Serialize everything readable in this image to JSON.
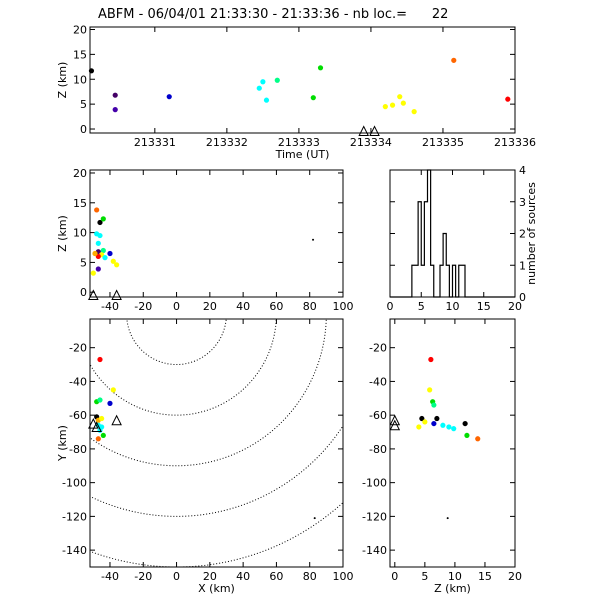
{
  "title": "ABFM - 06/04/01 21:33:30 - 21:33:36 - nb loc.=      22",
  "chart_data": [
    {
      "id": "time-height",
      "type": "scatter",
      "xlabel": "Time (UT)",
      "ylabel": "Z (km)",
      "xlim": [
        213330.1,
        213336.0
      ],
      "ylim": [
        -0.8,
        20.5
      ],
      "xticks": [
        "213331",
        "213332",
        "213333",
        "213334",
        "213335",
        "213336"
      ],
      "yticks": [
        "0",
        "5",
        "10",
        "15",
        "20"
      ],
      "points": [
        {
          "x": 213330.12,
          "y": 11.7,
          "color": "#000000"
        },
        {
          "x": 213330.45,
          "y": 6.8,
          "color": "#440066"
        },
        {
          "x": 213330.45,
          "y": 3.9,
          "color": "#4400aa"
        },
        {
          "x": 213331.2,
          "y": 6.5,
          "color": "#0000cc"
        },
        {
          "x": 213332.45,
          "y": 8.2,
          "color": "#00ffff"
        },
        {
          "x": 213332.5,
          "y": 9.5,
          "color": "#00ffff"
        },
        {
          "x": 213332.55,
          "y": 5.8,
          "color": "#00ffff"
        },
        {
          "x": 213332.7,
          "y": 9.8,
          "color": "#00ff88"
        },
        {
          "x": 213333.2,
          "y": 6.3,
          "color": "#00dd00"
        },
        {
          "x": 213333.3,
          "y": 12.3,
          "color": "#00dd00"
        },
        {
          "x": 213334.2,
          "y": 4.5,
          "color": "#ffff00"
        },
        {
          "x": 213334.3,
          "y": 4.8,
          "color": "#ffff00"
        },
        {
          "x": 213334.4,
          "y": 6.5,
          "color": "#ffff00"
        },
        {
          "x": 213334.45,
          "y": 5.2,
          "color": "#ffff00"
        },
        {
          "x": 213334.6,
          "y": 3.5,
          "color": "#ffff00"
        },
        {
          "x": 213335.15,
          "y": 13.8,
          "color": "#ff6600"
        },
        {
          "x": 213335.9,
          "y": 6.0,
          "color": "#ff0000"
        }
      ],
      "stations_x": [
        213333.9,
        213334.05
      ]
    },
    {
      "id": "x-height",
      "type": "scatter",
      "ylabel": "Z (km)",
      "xlim": [
        -52,
        100
      ],
      "ylim": [
        -0.8,
        20.5
      ],
      "xticks": [
        "-40",
        "-20",
        "0",
        "20",
        "40",
        "60",
        "80",
        "100"
      ],
      "yticks": [
        "0",
        "5",
        "10",
        "15",
        "20"
      ],
      "points": [
        {
          "x": -48,
          "y": 13.8,
          "color": "#ff6600"
        },
        {
          "x": -46,
          "y": 11.7,
          "color": "#000000"
        },
        {
          "x": -44,
          "y": 12.3,
          "color": "#00dd00"
        },
        {
          "x": -48,
          "y": 9.8,
          "color": "#00ffff"
        },
        {
          "x": -46,
          "y": 9.5,
          "color": "#00ffff"
        },
        {
          "x": -47,
          "y": 8.2,
          "color": "#00ffff"
        },
        {
          "x": -44,
          "y": 7.0,
          "color": "#00ff88"
        },
        {
          "x": -40,
          "y": 6.5,
          "color": "#0000cc"
        },
        {
          "x": -47,
          "y": 6.8,
          "color": "#440066"
        },
        {
          "x": -45,
          "y": 6.3,
          "color": "#ffff00"
        },
        {
          "x": -47,
          "y": 6.0,
          "color": "#ff0000"
        },
        {
          "x": -49,
          "y": 6.5,
          "color": "#ffaa00"
        },
        {
          "x": -43,
          "y": 5.8,
          "color": "#00ffff"
        },
        {
          "x": -38,
          "y": 5.2,
          "color": "#ffff00"
        },
        {
          "x": -36,
          "y": 4.6,
          "color": "#ffff00"
        },
        {
          "x": -47,
          "y": 3.9,
          "color": "#4400aa"
        },
        {
          "x": -50,
          "y": 3.2,
          "color": "#ffff00"
        },
        {
          "x": 82,
          "y": 8.8,
          "color": "#000000",
          "small": true
        }
      ],
      "stations_x": [
        -50,
        -36
      ]
    },
    {
      "id": "histogram",
      "type": "bar",
      "ylabel2": "number of sources",
      "xlim": [
        0,
        20
      ],
      "ylim": [
        0,
        4
      ],
      "xticks": [
        "0",
        "5",
        "10",
        "15",
        "20"
      ],
      "yticks": [
        "0",
        "1",
        "2",
        "3",
        "4"
      ],
      "bin_edges": [
        0,
        0.5,
        1,
        1.5,
        2,
        2.5,
        3,
        3.5,
        4,
        4.5,
        5,
        5.5,
        6,
        6.5,
        7,
        7.5,
        8,
        8.5,
        9,
        9.5,
        10,
        10.5,
        11,
        11.5,
        12,
        12.5,
        13,
        13.5,
        14,
        14.5,
        15,
        15.5,
        16,
        16.5,
        17,
        17.5,
        18,
        18.5,
        19,
        19.5,
        20
      ],
      "counts": [
        0,
        0,
        0,
        0,
        0,
        0,
        0,
        1,
        1,
        3,
        1,
        3,
        4,
        1,
        0,
        0,
        1,
        2,
        1,
        0,
        1,
        0,
        1,
        1,
        0,
        0,
        0,
        0,
        0,
        0,
        0,
        0,
        0,
        0,
        0,
        0,
        0,
        0,
        0,
        0
      ]
    },
    {
      "id": "plan-view",
      "type": "scatter",
      "xlabel": "X (km)",
      "ylabel": "Y (km)",
      "xlim": [
        -52,
        100
      ],
      "ylim": [
        -150,
        -3
      ],
      "xticks": [
        "-40",
        "-20",
        "0",
        "20",
        "40",
        "60",
        "80",
        "100"
      ],
      "yticks": [
        "-20",
        "-40",
        "-60",
        "-80",
        "-100",
        "-120",
        "-140"
      ],
      "range_rings": {
        "center": [
          0,
          0
        ],
        "radii": [
          30,
          60,
          90,
          120,
          150
        ]
      },
      "points": [
        {
          "x": -46,
          "y": -27,
          "color": "#ff0000"
        },
        {
          "x": -38,
          "y": -45,
          "color": "#ffff00"
        },
        {
          "x": -48,
          "y": -52,
          "color": "#00dd00"
        },
        {
          "x": -46,
          "y": -51,
          "color": "#00ff88"
        },
        {
          "x": -40,
          "y": -53,
          "color": "#0000cc"
        },
        {
          "x": -48,
          "y": -61,
          "color": "#000000"
        },
        {
          "x": -47,
          "y": -63,
          "color": "#ffaa00"
        },
        {
          "x": -45,
          "y": -62,
          "color": "#ffff00"
        },
        {
          "x": -47,
          "y": -66,
          "color": "#00ffff"
        },
        {
          "x": -45,
          "y": -67,
          "color": "#00ffff"
        },
        {
          "x": -46,
          "y": -69,
          "color": "#00ffff"
        },
        {
          "x": -44,
          "y": -72,
          "color": "#00dd00"
        },
        {
          "x": -47,
          "y": -74,
          "color": "#ff6600"
        },
        {
          "x": 83,
          "y": -121,
          "color": "#000000",
          "small": true
        }
      ],
      "stations": [
        [
          -50,
          -65
        ],
        [
          -48,
          -67
        ],
        [
          -36,
          -63
        ]
      ]
    },
    {
      "id": "z-y",
      "type": "scatter",
      "xlabel": "Z (km)",
      "xlim": [
        -0.8,
        20
      ],
      "ylim": [
        -150,
        -3
      ],
      "xticks": [
        "0",
        "5",
        "10",
        "15",
        "20"
      ],
      "yticks": [
        "-20",
        "-40",
        "-60",
        "-80",
        "-100",
        "-120",
        "-140"
      ],
      "points": [
        {
          "x": 6.0,
          "y": -27,
          "color": "#ff0000"
        },
        {
          "x": 5.8,
          "y": -45,
          "color": "#ffff00"
        },
        {
          "x": 6.3,
          "y": -52,
          "color": "#00dd00"
        },
        {
          "x": 6.5,
          "y": -54,
          "color": "#00ff88"
        },
        {
          "x": 4.5,
          "y": -62,
          "color": "#000000"
        },
        {
          "x": 7.0,
          "y": -62,
          "color": "#000000"
        },
        {
          "x": 5.0,
          "y": -64,
          "color": "#ffff00"
        },
        {
          "x": 4.0,
          "y": -67,
          "color": "#ffff00"
        },
        {
          "x": 6.5,
          "y": -65,
          "color": "#0000cc"
        },
        {
          "x": 8.0,
          "y": -66,
          "color": "#00ffff"
        },
        {
          "x": 9.0,
          "y": -67,
          "color": "#00ffff"
        },
        {
          "x": 9.8,
          "y": -68,
          "color": "#00ffff"
        },
        {
          "x": 11.7,
          "y": -65,
          "color": "#000000"
        },
        {
          "x": 12.0,
          "y": -72,
          "color": "#00dd00"
        },
        {
          "x": 13.8,
          "y": -74,
          "color": "#ff6600"
        },
        {
          "x": 8.8,
          "y": -121,
          "color": "#000000",
          "small": true
        }
      ],
      "stations": [
        [
          0,
          -63
        ],
        [
          0,
          -66
        ]
      ]
    }
  ]
}
